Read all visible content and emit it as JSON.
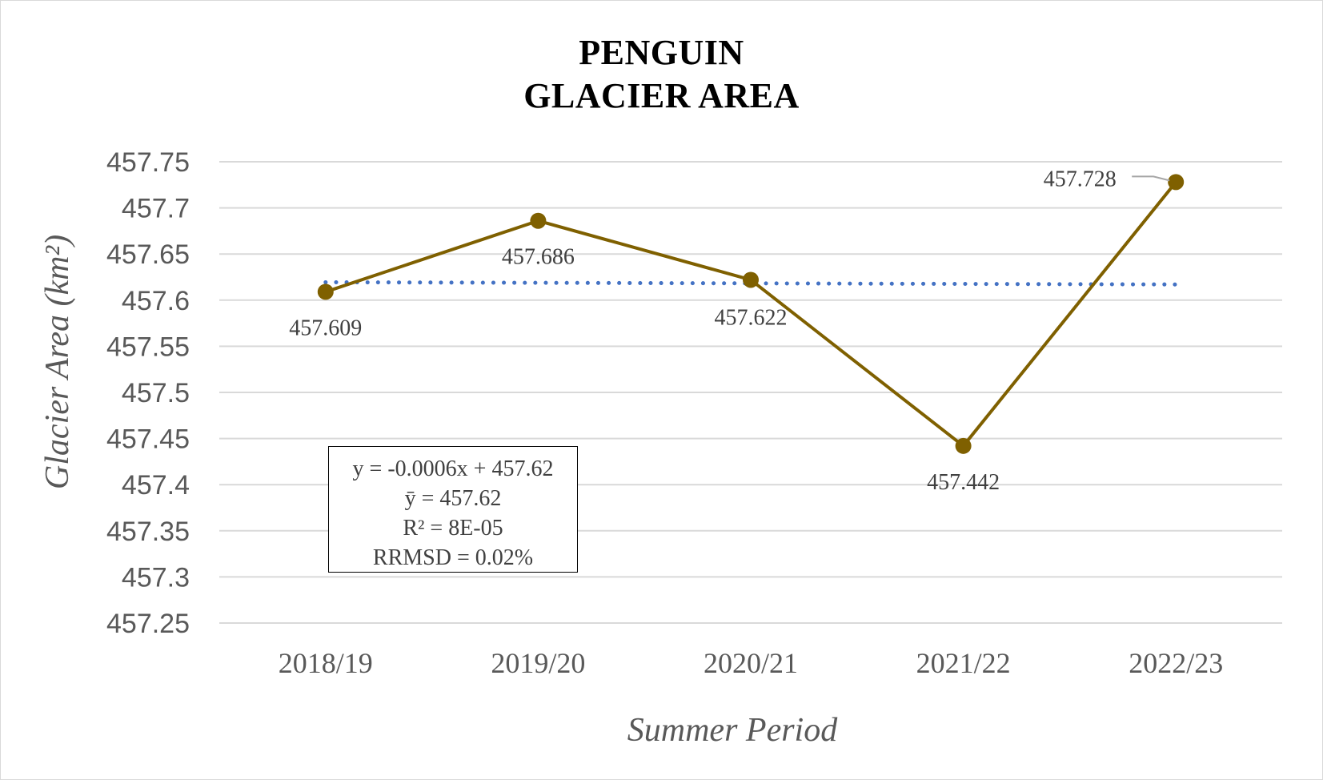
{
  "chart_data": {
    "type": "line",
    "title": [
      "PENGUIN",
      "GLACIER AREA"
    ],
    "xlabel": "Summer Period",
    "ylabel": "Glacier Area (km²)",
    "categories": [
      "2018/19",
      "2019/20",
      "2020/21",
      "2021/22",
      "2022/23"
    ],
    "series": [
      {
        "values": [
          457.609,
          457.686,
          457.622,
          457.442,
          457.728
        ],
        "color": "#7f6000"
      }
    ],
    "data_labels": [
      "457.609",
      "457.686",
      "457.622",
      "457.442",
      "457.728"
    ],
    "trendline": {
      "type": "linear",
      "slope": -0.0006,
      "intercept": 457.62,
      "style": "dotted",
      "color": "#4472c4"
    },
    "ylim": [
      457.25,
      457.75
    ],
    "yticks": [
      "457.25",
      "457.3",
      "457.35",
      "457.4",
      "457.45",
      "457.5",
      "457.55",
      "457.6",
      "457.65",
      "457.7",
      "457.75"
    ],
    "grid": "horizontal",
    "stats": [
      "y = -0.0006x + 457.62",
      "ȳ = 457.62",
      "R² = 8E-05",
      "RRMSD = 0.02%"
    ]
  }
}
